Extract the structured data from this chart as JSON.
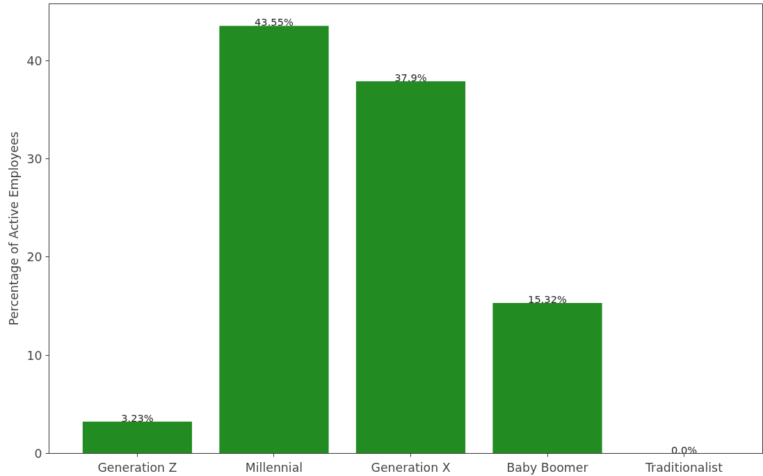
{
  "chart_data": {
    "type": "bar",
    "ylabel": "Percentage of Active Employees",
    "categories": [
      "Generation Z",
      "Millennial",
      "Generation X",
      "Baby Boomer",
      "Traditionalist"
    ],
    "values": [
      3.23,
      43.55,
      37.9,
      15.32,
      0.0
    ],
    "value_labels": [
      "3.23%",
      "43.55%",
      "37.9%",
      "15.32%",
      "0.0%"
    ],
    "color": "#228b22",
    "ylim": [
      0,
      45.8
    ],
    "yticks": [
      0,
      10,
      20,
      30,
      40
    ],
    "grid": false
  }
}
